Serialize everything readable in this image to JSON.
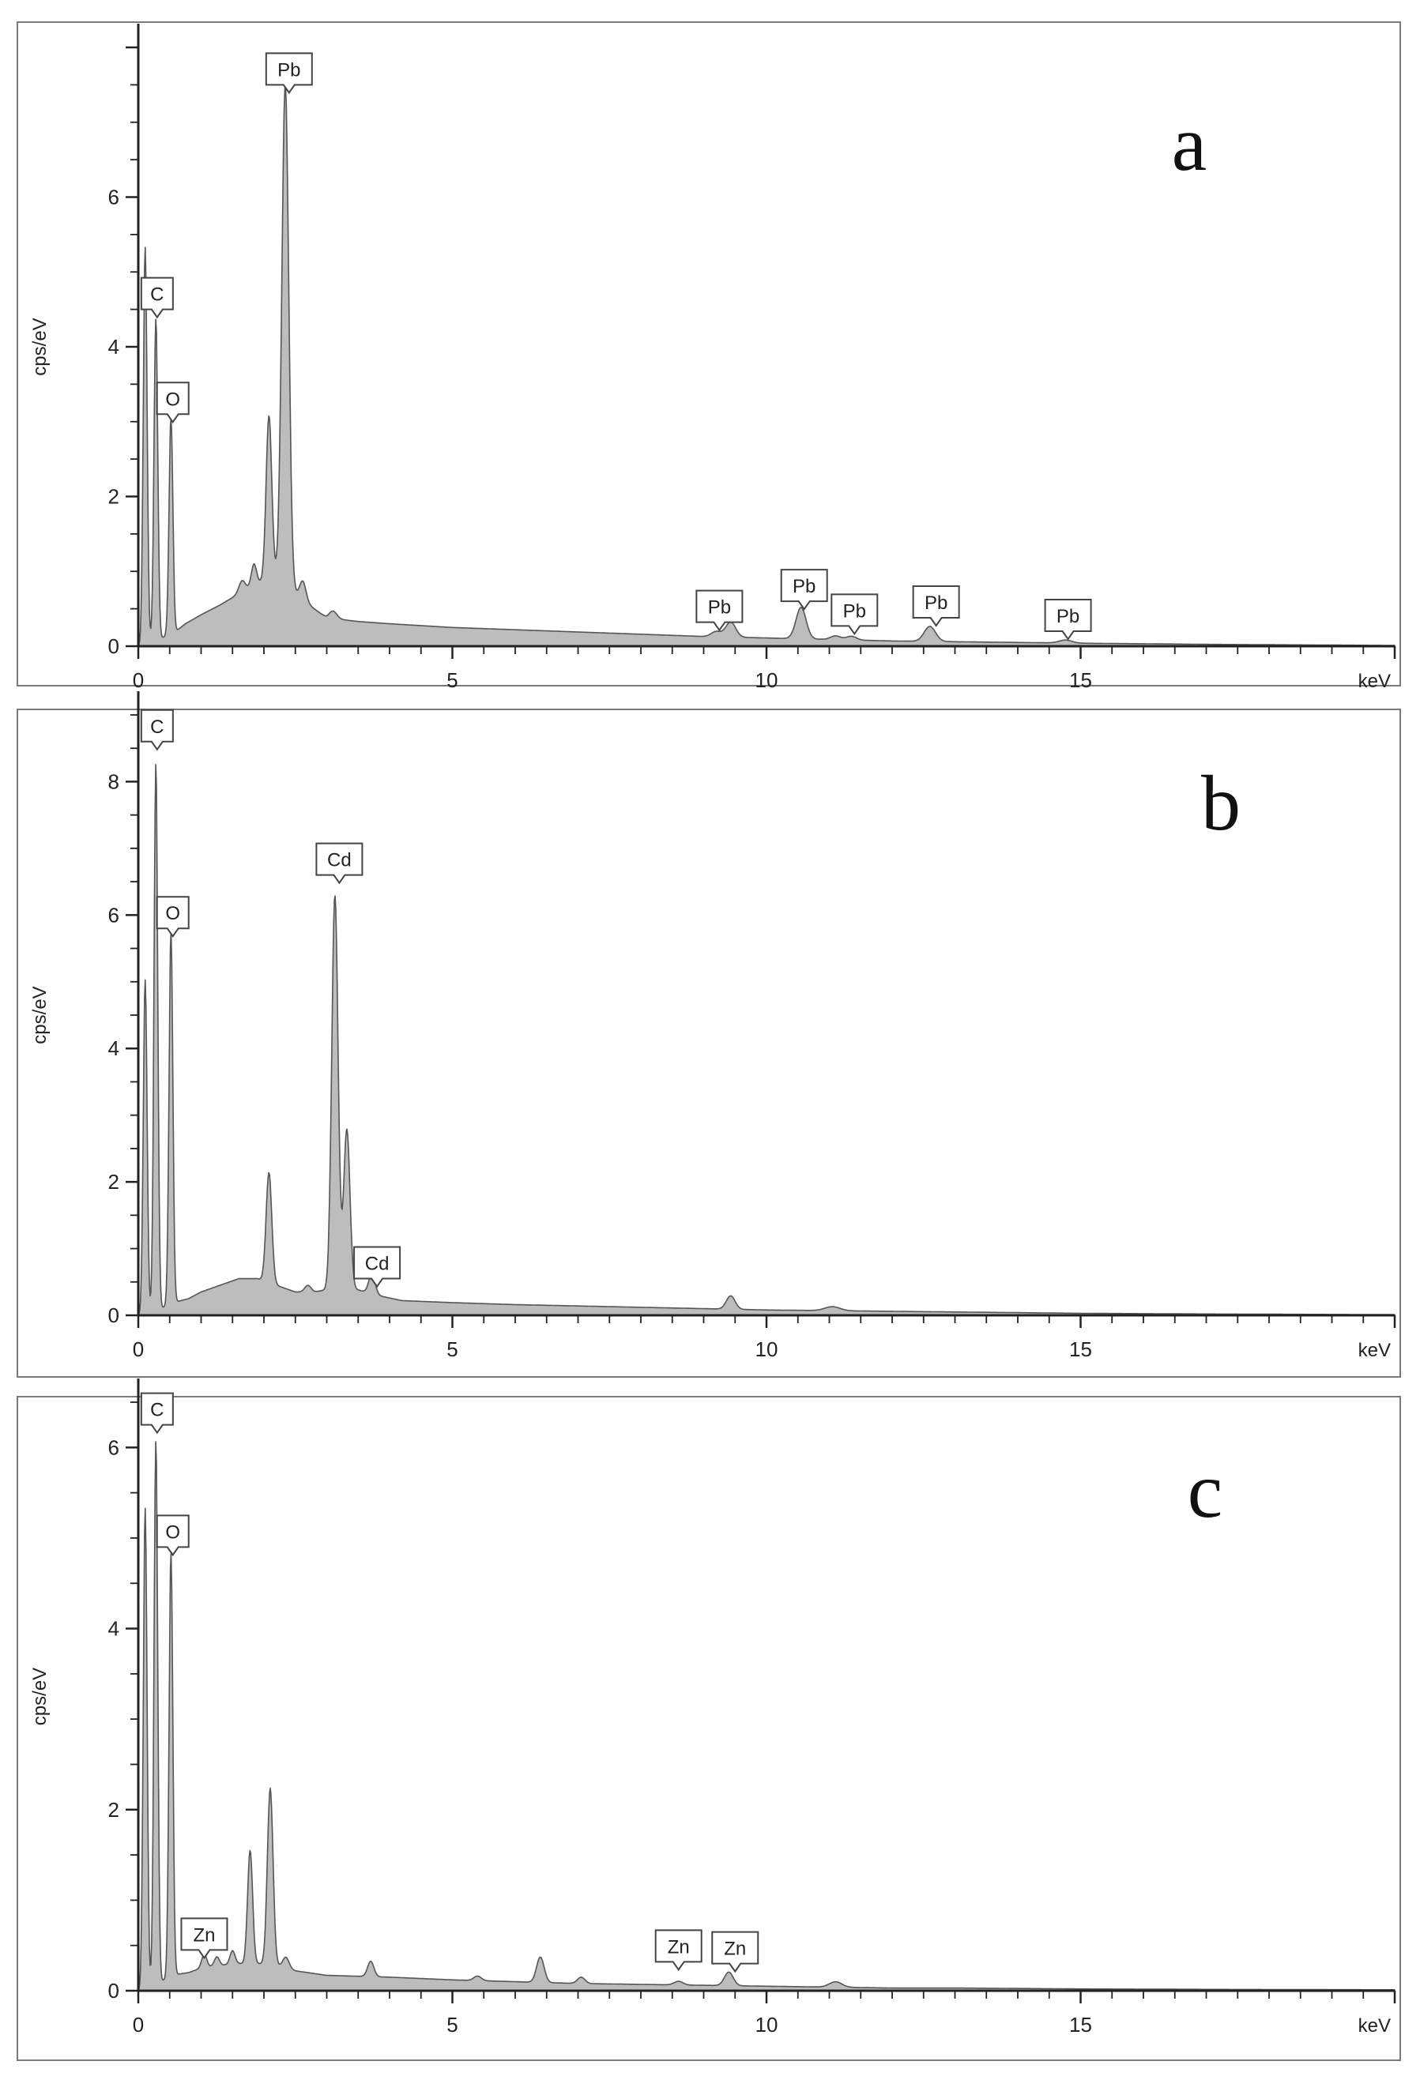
{
  "chart_data": [
    {
      "type": "area",
      "panel_label": "a",
      "ylabel": "cps/eV",
      "xlabel": "keV",
      "xlim": [
        0,
        20
      ],
      "ylim": [
        0,
        8
      ],
      "x_ticks": [
        0,
        5,
        10,
        15
      ],
      "y_ticks": [
        0,
        2,
        4,
        6
      ],
      "fill_color": "#bdbdbd",
      "line_color": "#555555",
      "background": [
        [
          0.0,
          0.0
        ],
        [
          0.35,
          0.1
        ],
        [
          0.6,
          0.2
        ],
        [
          0.75,
          0.3
        ],
        [
          1.0,
          0.42
        ],
        [
          1.3,
          0.55
        ],
        [
          1.6,
          0.7
        ],
        [
          1.9,
          0.85
        ],
        [
          2.2,
          0.9
        ],
        [
          2.5,
          0.7
        ],
        [
          2.8,
          0.5
        ],
        [
          3.0,
          0.38
        ],
        [
          3.5,
          0.33
        ],
        [
          4.0,
          0.3
        ],
        [
          5.0,
          0.25
        ],
        [
          6.0,
          0.22
        ],
        [
          7.0,
          0.19
        ],
        [
          8.0,
          0.16
        ],
        [
          9.0,
          0.13
        ],
        [
          10.0,
          0.11
        ],
        [
          11.0,
          0.09
        ],
        [
          12.0,
          0.07
        ],
        [
          13.0,
          0.06
        ],
        [
          14.0,
          0.05
        ],
        [
          15.0,
          0.04
        ],
        [
          17.0,
          0.025
        ],
        [
          20.0,
          0.01
        ]
      ],
      "peaks": [
        {
          "x": 0.11,
          "height": 5.3,
          "width": 0.03
        },
        {
          "x": 0.28,
          "height": 4.3,
          "width": 0.03
        },
        {
          "x": 0.52,
          "height": 2.9,
          "width": 0.03
        },
        {
          "x": 1.65,
          "height": 0.15,
          "width": 0.05
        },
        {
          "x": 1.84,
          "height": 0.28,
          "width": 0.04
        },
        {
          "x": 2.08,
          "height": 2.2,
          "width": 0.045
        },
        {
          "x": 2.34,
          "height": 6.7,
          "width": 0.055
        },
        {
          "x": 2.62,
          "height": 0.25,
          "width": 0.05
        },
        {
          "x": 3.1,
          "height": 0.1,
          "width": 0.06
        },
        {
          "x": 9.2,
          "height": 0.07,
          "width": 0.08
        },
        {
          "x": 9.43,
          "height": 0.2,
          "width": 0.08
        },
        {
          "x": 10.55,
          "height": 0.42,
          "width": 0.08
        },
        {
          "x": 11.1,
          "height": 0.05,
          "width": 0.08
        },
        {
          "x": 11.35,
          "height": 0.05,
          "width": 0.08
        },
        {
          "x": 12.6,
          "height": 0.2,
          "width": 0.09
        },
        {
          "x": 14.76,
          "height": 0.04,
          "width": 0.1
        }
      ],
      "annotations": [
        {
          "label": "C",
          "x": 0.3,
          "y": 4.5
        },
        {
          "label": "O",
          "x": 0.55,
          "y": 3.1
        },
        {
          "label": "Pb",
          "x": 2.4,
          "y": 7.5
        },
        {
          "label": "Pb",
          "x": 9.25,
          "y": 0.32
        },
        {
          "label": "Pb",
          "x": 10.6,
          "y": 0.6
        },
        {
          "label": "Pb",
          "x": 11.4,
          "y": 0.27
        },
        {
          "label": "Pb",
          "x": 12.7,
          "y": 0.38
        },
        {
          "label": "Pb",
          "x": 14.8,
          "y": 0.2
        }
      ]
    },
    {
      "type": "area",
      "panel_label": "b",
      "ylabel": "cps/eV",
      "xlabel": "keV",
      "xlim": [
        0,
        20
      ],
      "ylim": [
        0,
        9
      ],
      "x_ticks": [
        0,
        5,
        10,
        15
      ],
      "y_ticks": [
        0,
        2,
        4,
        6,
        8
      ],
      "fill_color": "#bdbdbd",
      "line_color": "#555555",
      "background": [
        [
          0.0,
          0.0
        ],
        [
          0.35,
          0.1
        ],
        [
          0.6,
          0.2
        ],
        [
          0.8,
          0.25
        ],
        [
          1.0,
          0.35
        ],
        [
          1.3,
          0.45
        ],
        [
          1.6,
          0.55
        ],
        [
          1.9,
          0.55
        ],
        [
          2.2,
          0.45
        ],
        [
          2.5,
          0.35
        ],
        [
          2.8,
          0.35
        ],
        [
          3.1,
          0.4
        ],
        [
          3.5,
          0.38
        ],
        [
          3.8,
          0.3
        ],
        [
          4.2,
          0.22
        ],
        [
          5.0,
          0.19
        ],
        [
          6.0,
          0.16
        ],
        [
          7.0,
          0.14
        ],
        [
          8.0,
          0.12
        ],
        [
          9.0,
          0.1
        ],
        [
          10.0,
          0.08
        ],
        [
          11.0,
          0.07
        ],
        [
          12.0,
          0.06
        ],
        [
          13.0,
          0.05
        ],
        [
          15.0,
          0.03
        ],
        [
          17.0,
          0.02
        ],
        [
          20.0,
          0.01
        ]
      ],
      "peaks": [
        {
          "x": 0.11,
          "height": 5.0,
          "width": 0.03
        },
        {
          "x": 0.28,
          "height": 8.2,
          "width": 0.03
        },
        {
          "x": 0.52,
          "height": 5.6,
          "width": 0.03
        },
        {
          "x": 2.08,
          "height": 1.65,
          "width": 0.045
        },
        {
          "x": 2.7,
          "height": 0.1,
          "width": 0.05
        },
        {
          "x": 3.13,
          "height": 5.9,
          "width": 0.05
        },
        {
          "x": 3.32,
          "height": 2.4,
          "width": 0.05
        },
        {
          "x": 3.72,
          "height": 0.3,
          "width": 0.05
        },
        {
          "x": 9.43,
          "height": 0.2,
          "width": 0.07
        },
        {
          "x": 11.05,
          "height": 0.06,
          "width": 0.12
        }
      ],
      "annotations": [
        {
          "label": "C",
          "x": 0.3,
          "y": 8.6
        },
        {
          "label": "O",
          "x": 0.55,
          "y": 5.8
        },
        {
          "label": "Cd",
          "x": 3.2,
          "y": 6.6
        },
        {
          "label": "Cd",
          "x": 3.8,
          "y": 0.55
        }
      ]
    },
    {
      "type": "area",
      "panel_label": "c",
      "ylabel": "cps/eV",
      "xlabel": "keV",
      "xlim": [
        0,
        20
      ],
      "ylim": [
        0,
        6.5
      ],
      "x_ticks": [
        0,
        5,
        10,
        15
      ],
      "y_ticks": [
        0,
        2,
        4,
        6
      ],
      "fill_color": "#bdbdbd",
      "line_color": "#555555",
      "background": [
        [
          0.0,
          0.0
        ],
        [
          0.35,
          0.1
        ],
        [
          0.6,
          0.18
        ],
        [
          0.8,
          0.2
        ],
        [
          1.0,
          0.25
        ],
        [
          1.3,
          0.28
        ],
        [
          1.6,
          0.3
        ],
        [
          1.9,
          0.3
        ],
        [
          2.2,
          0.28
        ],
        [
          2.5,
          0.22
        ],
        [
          3.0,
          0.17
        ],
        [
          3.5,
          0.16
        ],
        [
          4.0,
          0.15
        ],
        [
          5.0,
          0.12
        ],
        [
          6.0,
          0.1
        ],
        [
          7.0,
          0.08
        ],
        [
          8.0,
          0.07
        ],
        [
          9.0,
          0.06
        ],
        [
          10.0,
          0.05
        ],
        [
          11.0,
          0.04
        ],
        [
          12.0,
          0.03
        ],
        [
          13.0,
          0.03
        ],
        [
          15.0,
          0.02
        ],
        [
          17.0,
          0.015
        ],
        [
          20.0,
          0.01
        ]
      ],
      "peaks": [
        {
          "x": 0.11,
          "height": 5.3,
          "width": 0.03
        },
        {
          "x": 0.28,
          "height": 6.0,
          "width": 0.03
        },
        {
          "x": 0.52,
          "height": 4.7,
          "width": 0.03
        },
        {
          "x": 1.05,
          "height": 0.15,
          "width": 0.04
        },
        {
          "x": 1.25,
          "height": 0.1,
          "width": 0.04
        },
        {
          "x": 1.5,
          "height": 0.15,
          "width": 0.04
        },
        {
          "x": 1.78,
          "height": 1.25,
          "width": 0.04
        },
        {
          "x": 2.1,
          "height": 1.95,
          "width": 0.045
        },
        {
          "x": 2.35,
          "height": 0.12,
          "width": 0.05
        },
        {
          "x": 3.7,
          "height": 0.17,
          "width": 0.05
        },
        {
          "x": 5.4,
          "height": 0.05,
          "width": 0.06
        },
        {
          "x": 6.4,
          "height": 0.28,
          "width": 0.06
        },
        {
          "x": 7.05,
          "height": 0.07,
          "width": 0.06
        },
        {
          "x": 8.6,
          "height": 0.04,
          "width": 0.07
        },
        {
          "x": 9.4,
          "height": 0.15,
          "width": 0.07
        },
        {
          "x": 11.1,
          "height": 0.06,
          "width": 0.1
        }
      ],
      "annotations": [
        {
          "label": "C",
          "x": 0.3,
          "y": 6.25
        },
        {
          "label": "O",
          "x": 0.55,
          "y": 4.9
        },
        {
          "label": "Zn",
          "x": 1.05,
          "y": 0.45
        },
        {
          "label": "Zn",
          "x": 8.6,
          "y": 0.32
        },
        {
          "label": "Zn",
          "x": 9.5,
          "y": 0.3
        }
      ]
    }
  ]
}
